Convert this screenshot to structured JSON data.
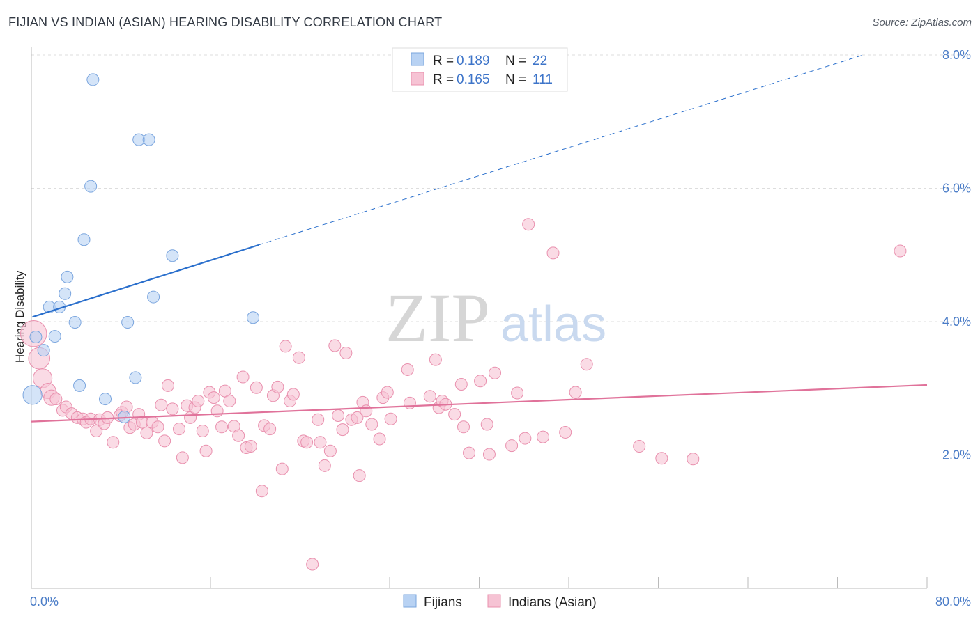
{
  "header": {
    "title": "FIJIAN VS INDIAN (ASIAN) HEARING DISABILITY CORRELATION CHART",
    "source": "Source: ZipAtlas.com"
  },
  "watermark": {
    "zip": "ZIP",
    "atlas": "atlas"
  },
  "colors": {
    "fijian_fill": "#b8d2f3",
    "fijian_stroke": "#7aa5de",
    "fijian_line": "#2a6fcc",
    "indian_fill": "#f6c3d4",
    "indian_stroke": "#e990ae",
    "indian_line": "#e0729a",
    "axis_text": "#4a7cc7",
    "grid": "#dddddd"
  },
  "legend": {
    "rows": [
      {
        "r_label": "R =",
        "r_value": "0.189",
        "n_label": "N =",
        "n_value": "22"
      },
      {
        "r_label": "R =",
        "r_value": "0.165",
        "n_label": "N =",
        "n_value": "111"
      }
    ]
  },
  "bottom_legend": {
    "fijians": "Fijians",
    "indians": "Indians (Asian)"
  },
  "chart_data": {
    "type": "scatter",
    "title": "FIJIAN VS INDIAN (ASIAN) HEARING DISABILITY CORRELATION CHART",
    "xlabel": "",
    "ylabel": "Hearing Disability",
    "xlim": [
      0,
      80
    ],
    "ylim": [
      0,
      8
    ],
    "x_tick_labels": [
      "0.0%",
      "80.0%"
    ],
    "y_ticks": [
      2,
      4,
      6,
      8
    ],
    "y_tick_labels": [
      "2.0%",
      "4.0%",
      "6.0%",
      "8.0%"
    ],
    "grid": true,
    "legend_position": "top-center",
    "series": [
      {
        "name": "Fijians",
        "r": 0.189,
        "n": 22,
        "trend": {
          "x0": 0.1,
          "y0": 4.07,
          "x1": 20.3,
          "y1": 5.15,
          "dash_x1": 74.3,
          "dash_y1": 8.0
        },
        "points": [
          [
            0.1,
            2.9,
            1.6
          ],
          [
            0.4,
            3.77,
            1
          ],
          [
            1.1,
            3.57,
            1
          ],
          [
            1.6,
            4.22,
            1
          ],
          [
            2.1,
            3.78,
            1
          ],
          [
            2.5,
            4.22,
            1
          ],
          [
            3.0,
            4.42,
            1
          ],
          [
            3.2,
            4.67,
            1
          ],
          [
            3.9,
            3.99,
            1
          ],
          [
            4.3,
            3.04,
            1
          ],
          [
            4.7,
            5.23,
            1
          ],
          [
            5.3,
            6.03,
            1
          ],
          [
            5.5,
            7.63,
            1
          ],
          [
            6.6,
            2.84,
            1
          ],
          [
            8.6,
            3.99,
            1
          ],
          [
            9.3,
            3.16,
            1
          ],
          [
            9.6,
            6.73,
            1
          ],
          [
            10.5,
            6.73,
            1
          ],
          [
            10.9,
            4.37,
            1
          ],
          [
            12.6,
            4.99,
            1
          ],
          [
            19.8,
            4.06,
            1
          ],
          [
            8.3,
            2.57,
            1
          ]
        ]
      },
      {
        "name": "Indians (Asian)",
        "r": 0.165,
        "n": 111,
        "trend": {
          "x0": 0,
          "y0": 2.5,
          "x1": 80,
          "y1": 3.05
        },
        "points": [
          [
            0.2,
            3.82,
            2.2
          ],
          [
            0.7,
            3.45,
            1.8
          ],
          [
            1.0,
            3.15,
            1.6
          ],
          [
            1.5,
            2.96,
            1.3
          ],
          [
            1.8,
            2.86,
            1.3
          ],
          [
            2.2,
            2.84,
            1
          ],
          [
            2.8,
            2.67,
            1
          ],
          [
            3.1,
            2.72,
            1
          ],
          [
            3.6,
            2.62,
            1
          ],
          [
            4.1,
            2.56,
            1
          ],
          [
            4.6,
            2.54,
            1
          ],
          [
            4.9,
            2.49,
            1
          ],
          [
            5.3,
            2.54,
            1
          ],
          [
            5.8,
            2.36,
            1
          ],
          [
            6.1,
            2.53,
            1
          ],
          [
            6.5,
            2.47,
            1
          ],
          [
            6.8,
            2.56,
            1
          ],
          [
            7.3,
            2.19,
            1
          ],
          [
            7.9,
            2.59,
            1
          ],
          [
            8.1,
            2.64,
            1
          ],
          [
            8.5,
            2.72,
            1
          ],
          [
            8.8,
            2.41,
            1
          ],
          [
            9.2,
            2.46,
            1
          ],
          [
            9.6,
            2.61,
            1
          ],
          [
            9.9,
            2.49,
            1
          ],
          [
            10.3,
            2.33,
            1
          ],
          [
            10.8,
            2.49,
            1
          ],
          [
            11.3,
            2.42,
            1
          ],
          [
            11.6,
            2.75,
            1
          ],
          [
            11.9,
            2.21,
            1
          ],
          [
            12.2,
            3.04,
            1
          ],
          [
            12.6,
            2.69,
            1
          ],
          [
            13.2,
            2.39,
            1
          ],
          [
            13.5,
            1.96,
            1
          ],
          [
            13.9,
            2.74,
            1
          ],
          [
            14.2,
            2.56,
            1
          ],
          [
            14.6,
            2.71,
            1
          ],
          [
            14.9,
            2.81,
            1
          ],
          [
            15.3,
            2.36,
            1
          ],
          [
            15.6,
            2.06,
            1
          ],
          [
            15.9,
            2.94,
            1
          ],
          [
            16.3,
            2.86,
            1
          ],
          [
            16.6,
            2.66,
            1
          ],
          [
            17.0,
            2.42,
            1
          ],
          [
            17.3,
            2.96,
            1
          ],
          [
            17.7,
            2.81,
            1
          ],
          [
            18.1,
            2.43,
            1
          ],
          [
            18.5,
            2.29,
            1
          ],
          [
            18.9,
            3.17,
            1
          ],
          [
            19.2,
            2.11,
            1
          ],
          [
            19.6,
            2.13,
            1
          ],
          [
            20.1,
            3.01,
            1
          ],
          [
            20.6,
            1.46,
            1
          ],
          [
            20.8,
            2.44,
            1
          ],
          [
            21.3,
            2.39,
            1
          ],
          [
            21.6,
            2.89,
            1
          ],
          [
            22.0,
            3.02,
            1
          ],
          [
            22.4,
            1.79,
            1
          ],
          [
            22.7,
            3.63,
            1
          ],
          [
            23.1,
            2.81,
            1
          ],
          [
            23.4,
            2.91,
            1
          ],
          [
            23.9,
            3.46,
            1
          ],
          [
            24.3,
            2.21,
            1
          ],
          [
            24.6,
            2.19,
            1
          ],
          [
            25.1,
            0.36,
            1
          ],
          [
            25.6,
            2.53,
            1
          ],
          [
            25.8,
            2.19,
            1
          ],
          [
            26.2,
            1.84,
            1
          ],
          [
            26.7,
            2.06,
            1
          ],
          [
            27.1,
            3.64,
            1
          ],
          [
            27.4,
            2.59,
            1
          ],
          [
            27.8,
            2.38,
            1
          ],
          [
            28.1,
            3.53,
            1
          ],
          [
            28.6,
            2.53,
            1
          ],
          [
            29.1,
            2.56,
            1
          ],
          [
            29.3,
            1.69,
            1
          ],
          [
            29.6,
            2.79,
            1
          ],
          [
            29.9,
            2.66,
            1
          ],
          [
            30.4,
            2.46,
            1
          ],
          [
            31.1,
            2.24,
            1
          ],
          [
            31.4,
            2.86,
            1
          ],
          [
            31.8,
            2.94,
            1
          ],
          [
            32.1,
            2.54,
            1
          ],
          [
            33.6,
            3.28,
            1
          ],
          [
            33.8,
            2.78,
            1
          ],
          [
            35.6,
            2.88,
            1
          ],
          [
            36.1,
            3.43,
            1
          ],
          [
            36.4,
            2.71,
            1
          ],
          [
            36.7,
            2.81,
            1
          ],
          [
            37.0,
            2.76,
            1
          ],
          [
            37.8,
            2.61,
            1
          ],
          [
            38.4,
            3.06,
            1
          ],
          [
            38.6,
            2.42,
            1
          ],
          [
            39.1,
            2.03,
            1
          ],
          [
            40.1,
            3.11,
            1
          ],
          [
            40.9,
            2.01,
            1
          ],
          [
            40.7,
            2.46,
            1
          ],
          [
            41.4,
            3.23,
            1
          ],
          [
            42.9,
            2.14,
            1
          ],
          [
            43.4,
            2.93,
            1
          ],
          [
            44.1,
            2.25,
            1
          ],
          [
            44.4,
            5.46,
            1
          ],
          [
            45.7,
            2.27,
            1
          ],
          [
            46.6,
            5.03,
            1
          ],
          [
            47.7,
            2.34,
            1
          ],
          [
            48.6,
            2.94,
            1
          ],
          [
            49.6,
            3.36,
            1
          ],
          [
            54.3,
            2.13,
            1
          ],
          [
            56.3,
            1.95,
            1
          ],
          [
            59.1,
            1.94,
            1
          ],
          [
            77.6,
            5.06,
            1
          ]
        ]
      }
    ]
  }
}
